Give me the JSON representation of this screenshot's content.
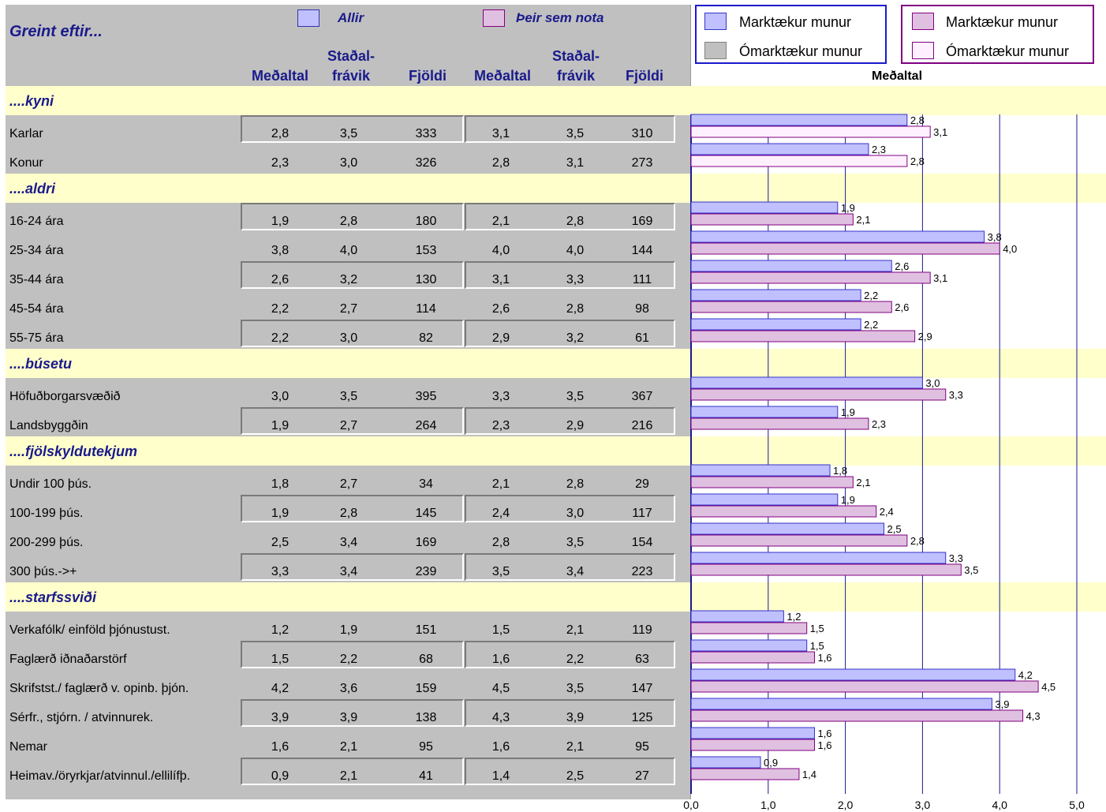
{
  "header": {
    "title": "Greint eftir...",
    "legend_all": "Allir",
    "legend_users": "Þeir sem nota",
    "col_mean": "Meðaltal",
    "col_sd_line1": "Staðal-",
    "col_sd_line2": "frávik",
    "col_n": "Fjöldi"
  },
  "legend_box_all": {
    "sig": "Marktækur munur",
    "nonsig": "Ómarktækur munur"
  },
  "legend_box_users": {
    "sig": "Marktækur munur",
    "nonsig": "Ómarktækur munur"
  },
  "colors": {
    "all_sig": "#c0c0ff",
    "all_sig_border": "#3333cc",
    "users_sig": "#e0c0e0",
    "users_sig_border": "#800080",
    "users_nonsig": "#fff0ff",
    "panel": "#c0c0c0",
    "section": "#ffffcc",
    "grid": "#1a1a8c",
    "header_text": "#1a1a8c"
  },
  "chart_data": {
    "type": "bar",
    "orientation": "horizontal",
    "title": "Meðaltal",
    "xlim": [
      0,
      5
    ],
    "xticks": [
      "0,0",
      "1,0",
      "2,0",
      "3,0",
      "4,0",
      "5,0"
    ],
    "series": [
      {
        "name": "Allir"
      },
      {
        "name": "Þeir sem nota"
      }
    ],
    "groups": [
      {
        "label": "....kyni",
        "rows": [
          {
            "label": "Karlar",
            "all": [
              "2,8",
              "3,5",
              "333"
            ],
            "users": [
              "3,1",
              "3,5",
              "310"
            ],
            "all_value": 2.8,
            "users_value": 3.1,
            "users_sig": false
          },
          {
            "label": "Konur",
            "all": [
              "2,3",
              "3,0",
              "326"
            ],
            "users": [
              "2,8",
              "3,1",
              "273"
            ],
            "all_value": 2.3,
            "users_value": 2.8,
            "users_sig": false
          }
        ]
      },
      {
        "label": "....aldri",
        "rows": [
          {
            "label": "16-24 ára",
            "all": [
              "1,9",
              "2,8",
              "180"
            ],
            "users": [
              "2,1",
              "2,8",
              "169"
            ],
            "all_value": 1.9,
            "users_value": 2.1,
            "users_sig": true
          },
          {
            "label": "25-34 ára",
            "all": [
              "3,8",
              "4,0",
              "153"
            ],
            "users": [
              "4,0",
              "4,0",
              "144"
            ],
            "all_value": 3.8,
            "users_value": 4.0,
            "users_sig": true
          },
          {
            "label": "35-44 ára",
            "all": [
              "2,6",
              "3,2",
              "130"
            ],
            "users": [
              "3,1",
              "3,3",
              "111"
            ],
            "all_value": 2.6,
            "users_value": 3.1,
            "users_sig": true
          },
          {
            "label": "45-54 ára",
            "all": [
              "2,2",
              "2,7",
              "114"
            ],
            "users": [
              "2,6",
              "2,8",
              "98"
            ],
            "all_value": 2.2,
            "users_value": 2.6,
            "users_sig": true
          },
          {
            "label": "55-75 ára",
            "all": [
              "2,2",
              "3,0",
              "82"
            ],
            "users": [
              "2,9",
              "3,2",
              "61"
            ],
            "all_value": 2.2,
            "users_value": 2.9,
            "users_sig": true
          }
        ]
      },
      {
        "label": "....búsetu",
        "rows": [
          {
            "label": "Höfuðborgarsvæðið",
            "all": [
              "3,0",
              "3,5",
              "395"
            ],
            "users": [
              "3,3",
              "3,5",
              "367"
            ],
            "all_value": 3.0,
            "users_value": 3.3,
            "users_sig": true
          },
          {
            "label": "Landsbyggðin",
            "all": [
              "1,9",
              "2,7",
              "264"
            ],
            "users": [
              "2,3",
              "2,9",
              "216"
            ],
            "all_value": 1.9,
            "users_value": 2.3,
            "users_sig": true
          }
        ]
      },
      {
        "label": "....fjölskyldutekjum",
        "rows": [
          {
            "label": "Undir 100 þús.",
            "all": [
              "1,8",
              "2,7",
              "34"
            ],
            "users": [
              "2,1",
              "2,8",
              "29"
            ],
            "all_value": 1.8,
            "users_value": 2.1,
            "users_sig": true
          },
          {
            "label": "100-199 þús.",
            "all": [
              "1,9",
              "2,8",
              "145"
            ],
            "users": [
              "2,4",
              "3,0",
              "117"
            ],
            "all_value": 1.9,
            "users_value": 2.4,
            "users_sig": true
          },
          {
            "label": "200-299 þús.",
            "all": [
              "2,5",
              "3,4",
              "169"
            ],
            "users": [
              "2,8",
              "3,5",
              "154"
            ],
            "all_value": 2.5,
            "users_value": 2.8,
            "users_sig": true
          },
          {
            "label": "300 þús.->+",
            "all": [
              "3,3",
              "3,4",
              "239"
            ],
            "users": [
              "3,5",
              "3,4",
              "223"
            ],
            "all_value": 3.3,
            "users_value": 3.5,
            "users_sig": true
          }
        ]
      },
      {
        "label": "....starfssviði",
        "rows": [
          {
            "label": "Verkafólk/ einföld þjónustust.",
            "all": [
              "1,2",
              "1,9",
              "151"
            ],
            "users": [
              "1,5",
              "2,1",
              "119"
            ],
            "all_value": 1.2,
            "users_value": 1.5,
            "users_sig": true
          },
          {
            "label": "Faglærð iðnaðarstörf",
            "all": [
              "1,5",
              "2,2",
              "68"
            ],
            "users": [
              "1,6",
              "2,2",
              "63"
            ],
            "all_value": 1.5,
            "users_value": 1.6,
            "users_sig": true
          },
          {
            "label": "Skrifstst./ faglærð v. opinb. þjón.",
            "all": [
              "4,2",
              "3,6",
              "159"
            ],
            "users": [
              "4,5",
              "3,5",
              "147"
            ],
            "all_value": 4.2,
            "users_value": 4.5,
            "users_sig": true
          },
          {
            "label": "Sérfr., stjórn. / atvinnurek.",
            "all": [
              "3,9",
              "3,9",
              "138"
            ],
            "users": [
              "4,3",
              "3,9",
              "125"
            ],
            "all_value": 3.9,
            "users_value": 4.3,
            "users_sig": true
          },
          {
            "label": "Nemar",
            "all": [
              "1,6",
              "2,1",
              "95"
            ],
            "users": [
              "1,6",
              "2,1",
              "95"
            ],
            "all_value": 1.6,
            "users_value": 1.6,
            "users_sig": true
          },
          {
            "label": "Heimav./öryrkjar/atvinnul./ellilífþ.",
            "all": [
              "0,9",
              "2,1",
              "41"
            ],
            "users": [
              "1,4",
              "2,5",
              "27"
            ],
            "all_value": 0.9,
            "users_value": 1.4,
            "users_sig": true
          }
        ]
      }
    ]
  }
}
